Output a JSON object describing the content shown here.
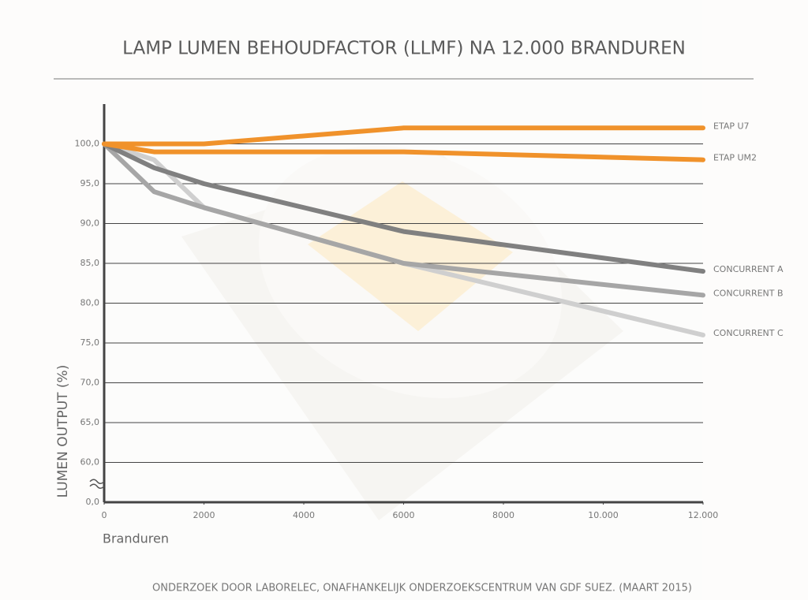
{
  "chart_data": {
    "type": "line",
    "title": "LAMP LUMEN BEHOUDFACTOR (LLMF) NA 12.000 BRANDUREN",
    "x_label": "Branduren",
    "y_label": "LUMEN OUTPUT (%)",
    "source": "ONDERZOEK DOOR LABORELEC, ONAFHANKELIJK ONDERZOEKSCENTRUM VAN GDF SUEZ. (MAART 2015)",
    "x": [
      0,
      1000,
      2000,
      6000,
      12000
    ],
    "series": [
      {
        "name": "ETAP U7",
        "color": "#f0922b",
        "values": [
          100,
          100,
          100,
          102,
          102
        ]
      },
      {
        "name": "ETAP UM2",
        "color": "#f0922b",
        "values": [
          100,
          99,
          99,
          99,
          98
        ]
      },
      {
        "name": "CONCURRENT A",
        "color": "#808080",
        "values": [
          100,
          97,
          95,
          89,
          84
        ]
      },
      {
        "name": "CONCURRENT B",
        "color": "#a6a6a6",
        "values": [
          100,
          94,
          92,
          85,
          81
        ]
      },
      {
        "name": "CONCURRENT C",
        "color": "#cfcfcf",
        "values": [
          100,
          98,
          92,
          85,
          76
        ]
      }
    ],
    "xlim": [
      0,
      12000
    ],
    "xticks": [
      0,
      2000,
      4000,
      6000,
      8000,
      {
        "value": 10000,
        "label": "10.000"
      },
      {
        "value": 12000,
        "label": "12.000"
      }
    ],
    "ylim": [
      0,
      105
    ],
    "yticks": [
      {
        "value": 0,
        "label": "0,0"
      },
      {
        "value": 60,
        "label": "60,0"
      },
      {
        "value": 65,
        "label": "65,0"
      },
      {
        "value": 70,
        "label": "70,0"
      },
      {
        "value": 75,
        "label": "75,0"
      },
      {
        "value": 80,
        "label": "80,0"
      },
      {
        "value": 85,
        "label": "85,0"
      },
      {
        "value": 90,
        "label": "90,0"
      },
      {
        "value": 95,
        "label": "95,0"
      },
      {
        "value": 100,
        "label": "100,0"
      }
    ],
    "axis_break": true,
    "grid": true
  }
}
